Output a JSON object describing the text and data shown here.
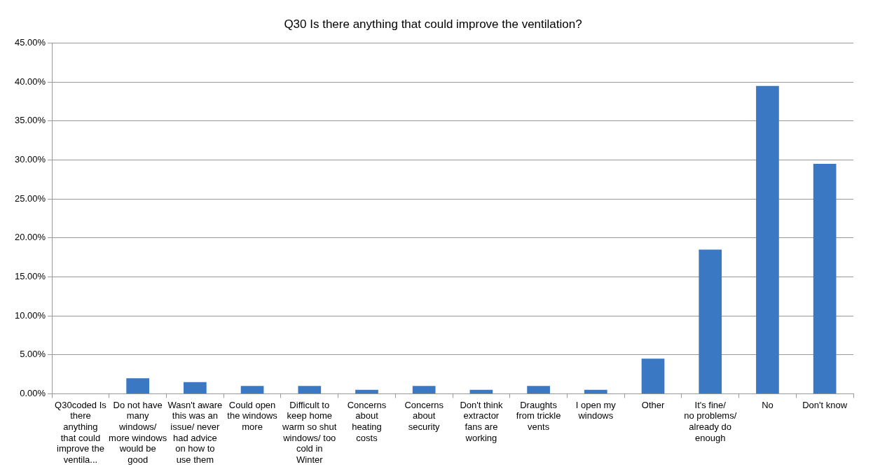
{
  "chart_data": {
    "type": "bar",
    "title": "Q30 Is there anything that could improve the ventilation?",
    "categories": [
      "Q30coded Is there anything that could improve the ventila...",
      "Do not have many windows/ more windows would be good",
      "Wasn't aware this was an issue/ never had advice on how to use them",
      "Could open the windows more",
      "Difficult to keep home warm so shut windows/ too cold in Winter",
      "Concerns about heating costs",
      "Concerns about security",
      "Don't think extractor fans are working",
      "Draughts from trickle vents",
      "I open my windows",
      "Other",
      "It's fine/ no problems/ already do enough",
      "No",
      "Don't know"
    ],
    "values": [
      0,
      2,
      1.5,
      1,
      1,
      0.5,
      1,
      0.5,
      1,
      0.5,
      4.5,
      18.5,
      39.5,
      29.5
    ],
    "color": "#3a78c4",
    "ylim": [
      0,
      45
    ],
    "yticks": [
      {
        "value": 0,
        "label": "0.00%"
      },
      {
        "value": 5,
        "label": "5.00%"
      },
      {
        "value": 10,
        "label": "10.00%"
      },
      {
        "value": 15,
        "label": "15.00%"
      },
      {
        "value": 20,
        "label": "20.00%"
      },
      {
        "value": 25,
        "label": "25.00%"
      },
      {
        "value": 30,
        "label": "30.00%"
      },
      {
        "value": 35,
        "label": "35.00%"
      },
      {
        "value": 40,
        "label": "40.00%"
      },
      {
        "value": 45,
        "label": "45.00%"
      }
    ],
    "grid": "y"
  }
}
